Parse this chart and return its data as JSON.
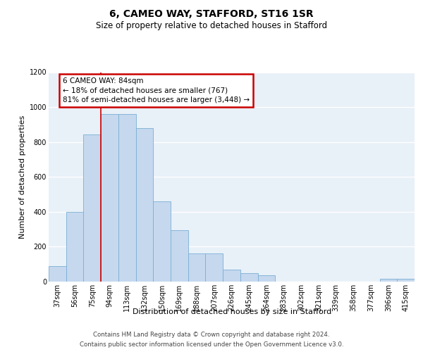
{
  "title": "6, CAMEO WAY, STAFFORD, ST16 1SR",
  "subtitle": "Size of property relative to detached houses in Stafford",
  "xlabel": "Distribution of detached houses by size in Stafford",
  "ylabel": "Number of detached properties",
  "categories": [
    "37sqm",
    "56sqm",
    "75sqm",
    "94sqm",
    "113sqm",
    "132sqm",
    "150sqm",
    "169sqm",
    "188sqm",
    "207sqm",
    "226sqm",
    "245sqm",
    "264sqm",
    "283sqm",
    "302sqm",
    "321sqm",
    "339sqm",
    "358sqm",
    "377sqm",
    "396sqm",
    "415sqm"
  ],
  "values": [
    90,
    400,
    845,
    960,
    960,
    880,
    460,
    295,
    160,
    160,
    70,
    50,
    35,
    0,
    0,
    0,
    0,
    0,
    0,
    15,
    15
  ],
  "bar_color": "#c5d8ee",
  "bar_edge_color": "#7aafd4",
  "background_color": "#e8f0f8",
  "grid_color": "#ffffff",
  "annotation_text": "6 CAMEO WAY: 84sqm\n← 18% of detached houses are smaller (767)\n81% of semi-detached houses are larger (3,448) →",
  "annotation_box_facecolor": "#ffffff",
  "annotation_box_edgecolor": "#cc0000",
  "red_line_index": 2.5,
  "ylim": [
    0,
    1200
  ],
  "yticks": [
    0,
    200,
    400,
    600,
    800,
    1000,
    1200
  ],
  "footer_line1": "Contains HM Land Registry data © Crown copyright and database right 2024.",
  "footer_line2": "Contains public sector information licensed under the Open Government Licence v3.0.",
  "fig_bg_color": "#ffffff",
  "title_fontsize": 10,
  "subtitle_fontsize": 8.5,
  "axis_label_fontsize": 8,
  "tick_fontsize": 7,
  "footer_fontsize": 6.2,
  "annotation_fontsize": 7.5
}
